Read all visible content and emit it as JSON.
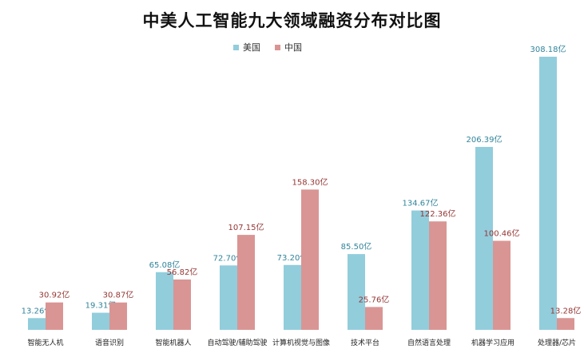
{
  "chart_data": {
    "type": "bar",
    "title": "中美人工智能九大领域融资分布对比图",
    "categories": [
      "智能无人机",
      "语音识别",
      "智能机器人",
      "自动驾驶/辅助驾驶",
      "计算机视觉与图像",
      "技术平台",
      "自然语言处理",
      "机器学习应用",
      "处理器/芯片"
    ],
    "series": [
      {
        "name": "美国",
        "color": "#92CDDC",
        "label_color": "#31849B",
        "values": [
          13.26,
          19.31,
          65.08,
          72.7,
          73.2,
          85.5,
          134.67,
          206.39,
          308.18
        ],
        "labels": [
          "13.26亿",
          "19.31亿",
          "65.08亿",
          "72.70亿",
          "73.20亿",
          "85.50亿",
          "134.67亿",
          "206.39亿",
          "308.18亿"
        ]
      },
      {
        "name": "中国",
        "color": "#D99594",
        "label_color": "#943634",
        "values": [
          30.92,
          30.87,
          56.82,
          107.15,
          158.3,
          25.76,
          122.36,
          100.46,
          13.28
        ],
        "labels": [
          "30.92亿",
          "30.87亿",
          "56.82亿",
          "107.15亿",
          "158.30亿",
          "25.76亿",
          "122.36亿",
          "100.46亿",
          "13.28亿"
        ]
      }
    ],
    "ylim": [
      0,
      308.18
    ],
    "grid": false,
    "legend": "top"
  }
}
